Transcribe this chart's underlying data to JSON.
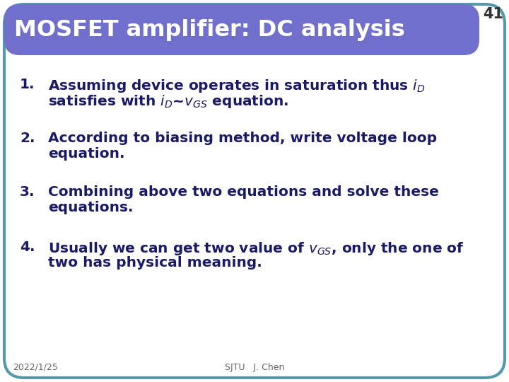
{
  "title": "MOSFET amplifier: DC analysis",
  "slide_number": "41",
  "title_bg_color": "#7070CC",
  "title_text_color": "#FFFFFF",
  "body_bg_color": "#FFFFFF",
  "border_color": "#5599AA",
  "footer_date": "2022/1/25",
  "footer_center": "SJTU   J. Chen",
  "items": [
    {
      "num": "1.",
      "line1": "Assuming device operates in saturation thus $i_D$",
      "line2": "satisfies with $i_D$~$v_{GS}$ equation."
    },
    {
      "num": "2.",
      "line1": "According to biasing method, write voltage loop",
      "line2": "equation."
    },
    {
      "num": "3.",
      "line1": "Combining above two equations and solve these",
      "line2": "equations."
    },
    {
      "num": "4.",
      "line1": "Usually we can get two value of $v_{GS}$, only the one of",
      "line2": "two has physical meaning."
    }
  ],
  "item_text_color": "#1A1A66",
  "num_text_color": "#1A1A66",
  "figsize": [
    7.2,
    5.4
  ],
  "dpi": 100
}
